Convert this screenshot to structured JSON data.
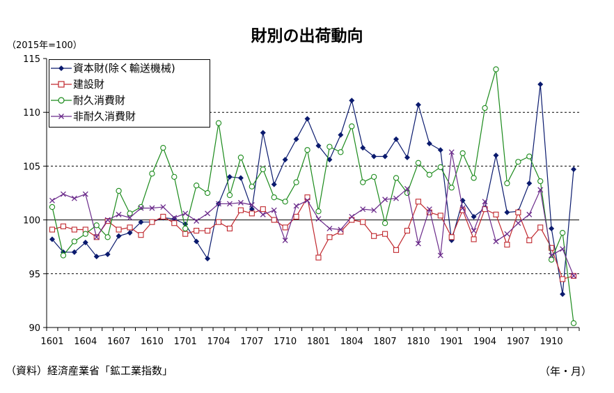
{
  "title": "財別の出荷動向",
  "unit_label": "（2015年=100）",
  "source_label": "（資料）経済産業省「鉱工業指数」",
  "x_unit_label": "（年・月）",
  "colors": {
    "capital": "#0a1a6e",
    "construction": "#c0272d",
    "durable": "#1a8a1a",
    "nondurable": "#6a2a8a"
  },
  "chart_data": {
    "type": "line",
    "title": "財別の出荷動向",
    "ylabel": "（2015年=100）",
    "xlabel": "（年・月）",
    "ylim": [
      90,
      115
    ],
    "yticks": [
      90,
      95,
      100,
      105,
      110,
      115
    ],
    "grid_y": [
      95,
      105,
      110
    ],
    "reference_line": 100,
    "legend_position": "top-left",
    "x": [
      "1601",
      "1602",
      "1603",
      "1604",
      "1605",
      "1606",
      "1607",
      "1608",
      "1609",
      "1610",
      "1611",
      "1612",
      "1701",
      "1702",
      "1703",
      "1704",
      "1705",
      "1706",
      "1707",
      "1708",
      "1709",
      "1710",
      "1711",
      "1712",
      "1801",
      "1802",
      "1803",
      "1804",
      "1805",
      "1806",
      "1807",
      "1808",
      "1809",
      "1810",
      "1811",
      "1812",
      "1901",
      "1902",
      "1903",
      "1904",
      "1905",
      "1906",
      "1907",
      "1908",
      "1909",
      "1910",
      "1911",
      "1912"
    ],
    "x_tick_labels": [
      "1601",
      "1604",
      "1607",
      "1610",
      "1701",
      "1704",
      "1707",
      "1710",
      "1801",
      "1804",
      "1807",
      "1810",
      "1901",
      "1904",
      "1907",
      "1910"
    ],
    "series": [
      {
        "name": "資本財(除く輸送機械)",
        "key": "capital",
        "marker": "diamond-filled",
        "values": [
          98.2,
          97.0,
          97.0,
          97.9,
          96.6,
          96.8,
          98.5,
          98.8,
          99.8,
          99.8,
          100.2,
          100.1,
          99.6,
          98.0,
          96.4,
          101.5,
          104.0,
          103.9,
          101.0,
          108.1,
          103.3,
          105.6,
          107.5,
          109.4,
          106.9,
          105.6,
          107.9,
          111.1,
          106.7,
          105.9,
          105.9,
          107.5,
          105.8,
          110.7,
          107.1,
          106.5,
          98.1,
          101.8,
          100.3,
          101.1,
          106.0,
          100.7,
          100.8,
          103.4,
          112.6,
          99.2,
          93.1,
          104.7
        ]
      },
      {
        "name": "建設財",
        "key": "construction",
        "marker": "square-open",
        "values": [
          99.1,
          99.4,
          99.1,
          99.1,
          98.4,
          99.9,
          99.1,
          99.3,
          98.6,
          99.8,
          100.3,
          99.7,
          98.7,
          99.0,
          99.0,
          99.8,
          99.2,
          100.9,
          100.6,
          101.0,
          100.0,
          99.3,
          100.3,
          102.1,
          96.5,
          98.4,
          98.9,
          100.0,
          99.8,
          98.5,
          98.7,
          97.2,
          99.0,
          101.7,
          100.7,
          100.4,
          98.4,
          100.9,
          98.2,
          101.0,
          100.5,
          97.7,
          100.7,
          98.1,
          99.3,
          97.4,
          94.5,
          94.8
        ]
      },
      {
        "name": "耐久消費財",
        "key": "durable",
        "marker": "circle-open",
        "values": [
          101.2,
          96.7,
          98.0,
          98.7,
          99.5,
          98.4,
          102.7,
          100.6,
          101.2,
          104.3,
          106.7,
          104.0,
          99.2,
          103.2,
          102.5,
          109.0,
          102.3,
          105.8,
          103.1,
          104.7,
          102.1,
          101.7,
          103.5,
          106.5,
          100.8,
          106.8,
          106.3,
          108.7,
          103.5,
          104.0,
          99.7,
          103.9,
          102.5,
          105.3,
          104.2,
          104.9,
          103.0,
          106.2,
          103.9,
          110.4,
          114.0,
          103.4,
          105.4,
          105.9,
          103.6,
          96.3,
          98.8,
          90.4
        ]
      },
      {
        "name": "非耐久消費財",
        "key": "nondurable",
        "marker": "x",
        "values": [
          101.8,
          102.4,
          102.0,
          102.4,
          98.4,
          100.0,
          100.5,
          100.2,
          101.1,
          101.1,
          101.2,
          100.2,
          100.6,
          99.9,
          100.6,
          101.5,
          101.5,
          101.6,
          101.4,
          100.5,
          100.9,
          98.1,
          101.3,
          101.8,
          100.1,
          99.2,
          99.1,
          100.3,
          101.0,
          100.9,
          101.9,
          102.0,
          102.9,
          97.8,
          101.0,
          96.7,
          106.3,
          101.1,
          99.0,
          101.7,
          98.0,
          98.7,
          99.7,
          100.5,
          102.8,
          96.7,
          97.3,
          94.8
        ]
      }
    ]
  }
}
